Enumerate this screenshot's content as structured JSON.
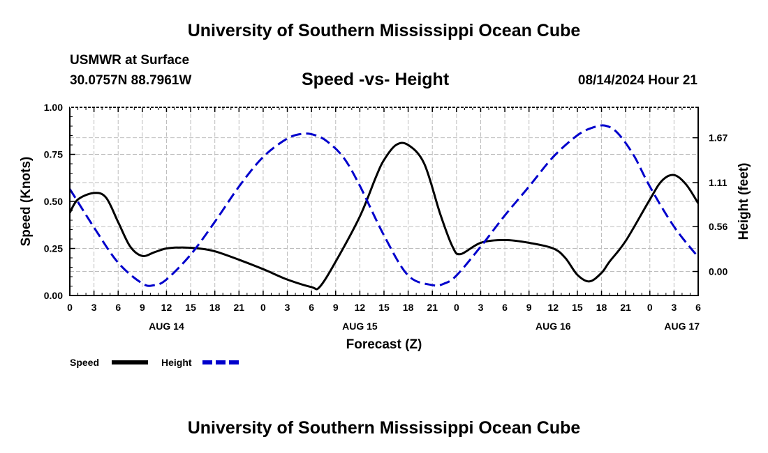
{
  "header": {
    "title": "University of Southern Mississippi Ocean Cube",
    "station": "USMWR at Surface",
    "coords": "30.0757N  88.7961W",
    "chart_title": "Speed -vs- Height",
    "date": "08/14/2024 Hour 21"
  },
  "footer": {
    "title": "University of Southern Mississippi Ocean Cube"
  },
  "chart_data": {
    "type": "line",
    "title": "Speed -vs- Height",
    "xlabel": "Forecast (Z)",
    "ylabel": "Speed (Knots)",
    "y2label": "Height (feet)",
    "x_range": [
      0,
      78
    ],
    "ylim": [
      0,
      1.0
    ],
    "y2lim": [
      -0.3,
      2.05
    ],
    "grid": true,
    "legend_position": "bottom-left",
    "x_ticks": [
      {
        "x": 0,
        "label": "0"
      },
      {
        "x": 3,
        "label": "3"
      },
      {
        "x": 6,
        "label": "6"
      },
      {
        "x": 9,
        "label": "9"
      },
      {
        "x": 12,
        "label": "12"
      },
      {
        "x": 15,
        "label": "15"
      },
      {
        "x": 18,
        "label": "18"
      },
      {
        "x": 21,
        "label": "21"
      },
      {
        "x": 24,
        "label": "0"
      },
      {
        "x": 27,
        "label": "3"
      },
      {
        "x": 30,
        "label": "6"
      },
      {
        "x": 33,
        "label": "9"
      },
      {
        "x": 36,
        "label": "12"
      },
      {
        "x": 39,
        "label": "15"
      },
      {
        "x": 42,
        "label": "18"
      },
      {
        "x": 45,
        "label": "21"
      },
      {
        "x": 48,
        "label": "0"
      },
      {
        "x": 51,
        "label": "3"
      },
      {
        "x": 54,
        "label": "6"
      },
      {
        "x": 57,
        "label": "9"
      },
      {
        "x": 60,
        "label": "12"
      },
      {
        "x": 63,
        "label": "15"
      },
      {
        "x": 66,
        "label": "18"
      },
      {
        "x": 69,
        "label": "21"
      },
      {
        "x": 72,
        "label": "0"
      },
      {
        "x": 75,
        "label": "3"
      },
      {
        "x": 78,
        "label": "6"
      }
    ],
    "date_labels": [
      {
        "x": 12,
        "label": "AUG 14"
      },
      {
        "x": 36,
        "label": "AUG 15"
      },
      {
        "x": 60,
        "label": "AUG 16"
      },
      {
        "x": 78,
        "label": "AUG 17"
      }
    ],
    "y_ticks": [
      {
        "v": 0.0,
        "label": "0.00"
      },
      {
        "v": 0.25,
        "label": "0.25"
      },
      {
        "v": 0.5,
        "label": "0.50"
      },
      {
        "v": 0.75,
        "label": "0.75"
      },
      {
        "v": 1.0,
        "label": "1.00"
      }
    ],
    "y2_ticks": [
      {
        "v": 0.0,
        "label": "0.00"
      },
      {
        "v": 0.56,
        "label": "0.56"
      },
      {
        "v": 1.11,
        "label": "1.11"
      },
      {
        "v": 1.67,
        "label": "1.67"
      }
    ],
    "series": [
      {
        "name": "Speed",
        "axis": "left",
        "color": "#000000",
        "dash": "solid",
        "x": [
          0,
          1,
          3,
          4.5,
          6,
          7.5,
          9,
          10.5,
          12,
          14,
          16,
          18,
          21,
          24,
          27,
          30,
          31,
          33,
          36,
          38,
          39,
          40.5,
          42,
          44,
          46,
          47.5,
          48.5,
          51,
          54,
          57,
          60,
          61.5,
          63,
          64.5,
          66,
          67,
          69,
          72,
          73.5,
          75,
          76.5,
          78
        ],
        "values": [
          0.44,
          0.51,
          0.545,
          0.52,
          0.39,
          0.26,
          0.21,
          0.23,
          0.25,
          0.255,
          0.25,
          0.235,
          0.19,
          0.14,
          0.085,
          0.045,
          0.045,
          0.18,
          0.42,
          0.63,
          0.72,
          0.8,
          0.8,
          0.7,
          0.43,
          0.26,
          0.22,
          0.28,
          0.295,
          0.28,
          0.25,
          0.2,
          0.11,
          0.075,
          0.12,
          0.18,
          0.29,
          0.51,
          0.61,
          0.64,
          0.59,
          0.49
        ]
      },
      {
        "name": "Height",
        "axis": "right",
        "color": "#0000cc",
        "dash": "dashed",
        "x": [
          0,
          3,
          6,
          9,
          10.5,
          12,
          15,
          18,
          21,
          24,
          27,
          29,
          30.5,
          32,
          34,
          36,
          39,
          42,
          45,
          46.5,
          48,
          51,
          54,
          57,
          60,
          63,
          65,
          66.5,
          68,
          70,
          72,
          75,
          78
        ],
        "values": [
          1.03,
          0.55,
          0.11,
          -0.15,
          -0.17,
          -0.1,
          0.21,
          0.62,
          1.06,
          1.43,
          1.66,
          1.72,
          1.7,
          1.62,
          1.42,
          1.07,
          0.45,
          -0.05,
          -0.17,
          -0.15,
          -0.05,
          0.31,
          0.7,
          1.06,
          1.43,
          1.7,
          1.8,
          1.82,
          1.73,
          1.45,
          1.06,
          0.56,
          0.18
        ]
      }
    ]
  }
}
